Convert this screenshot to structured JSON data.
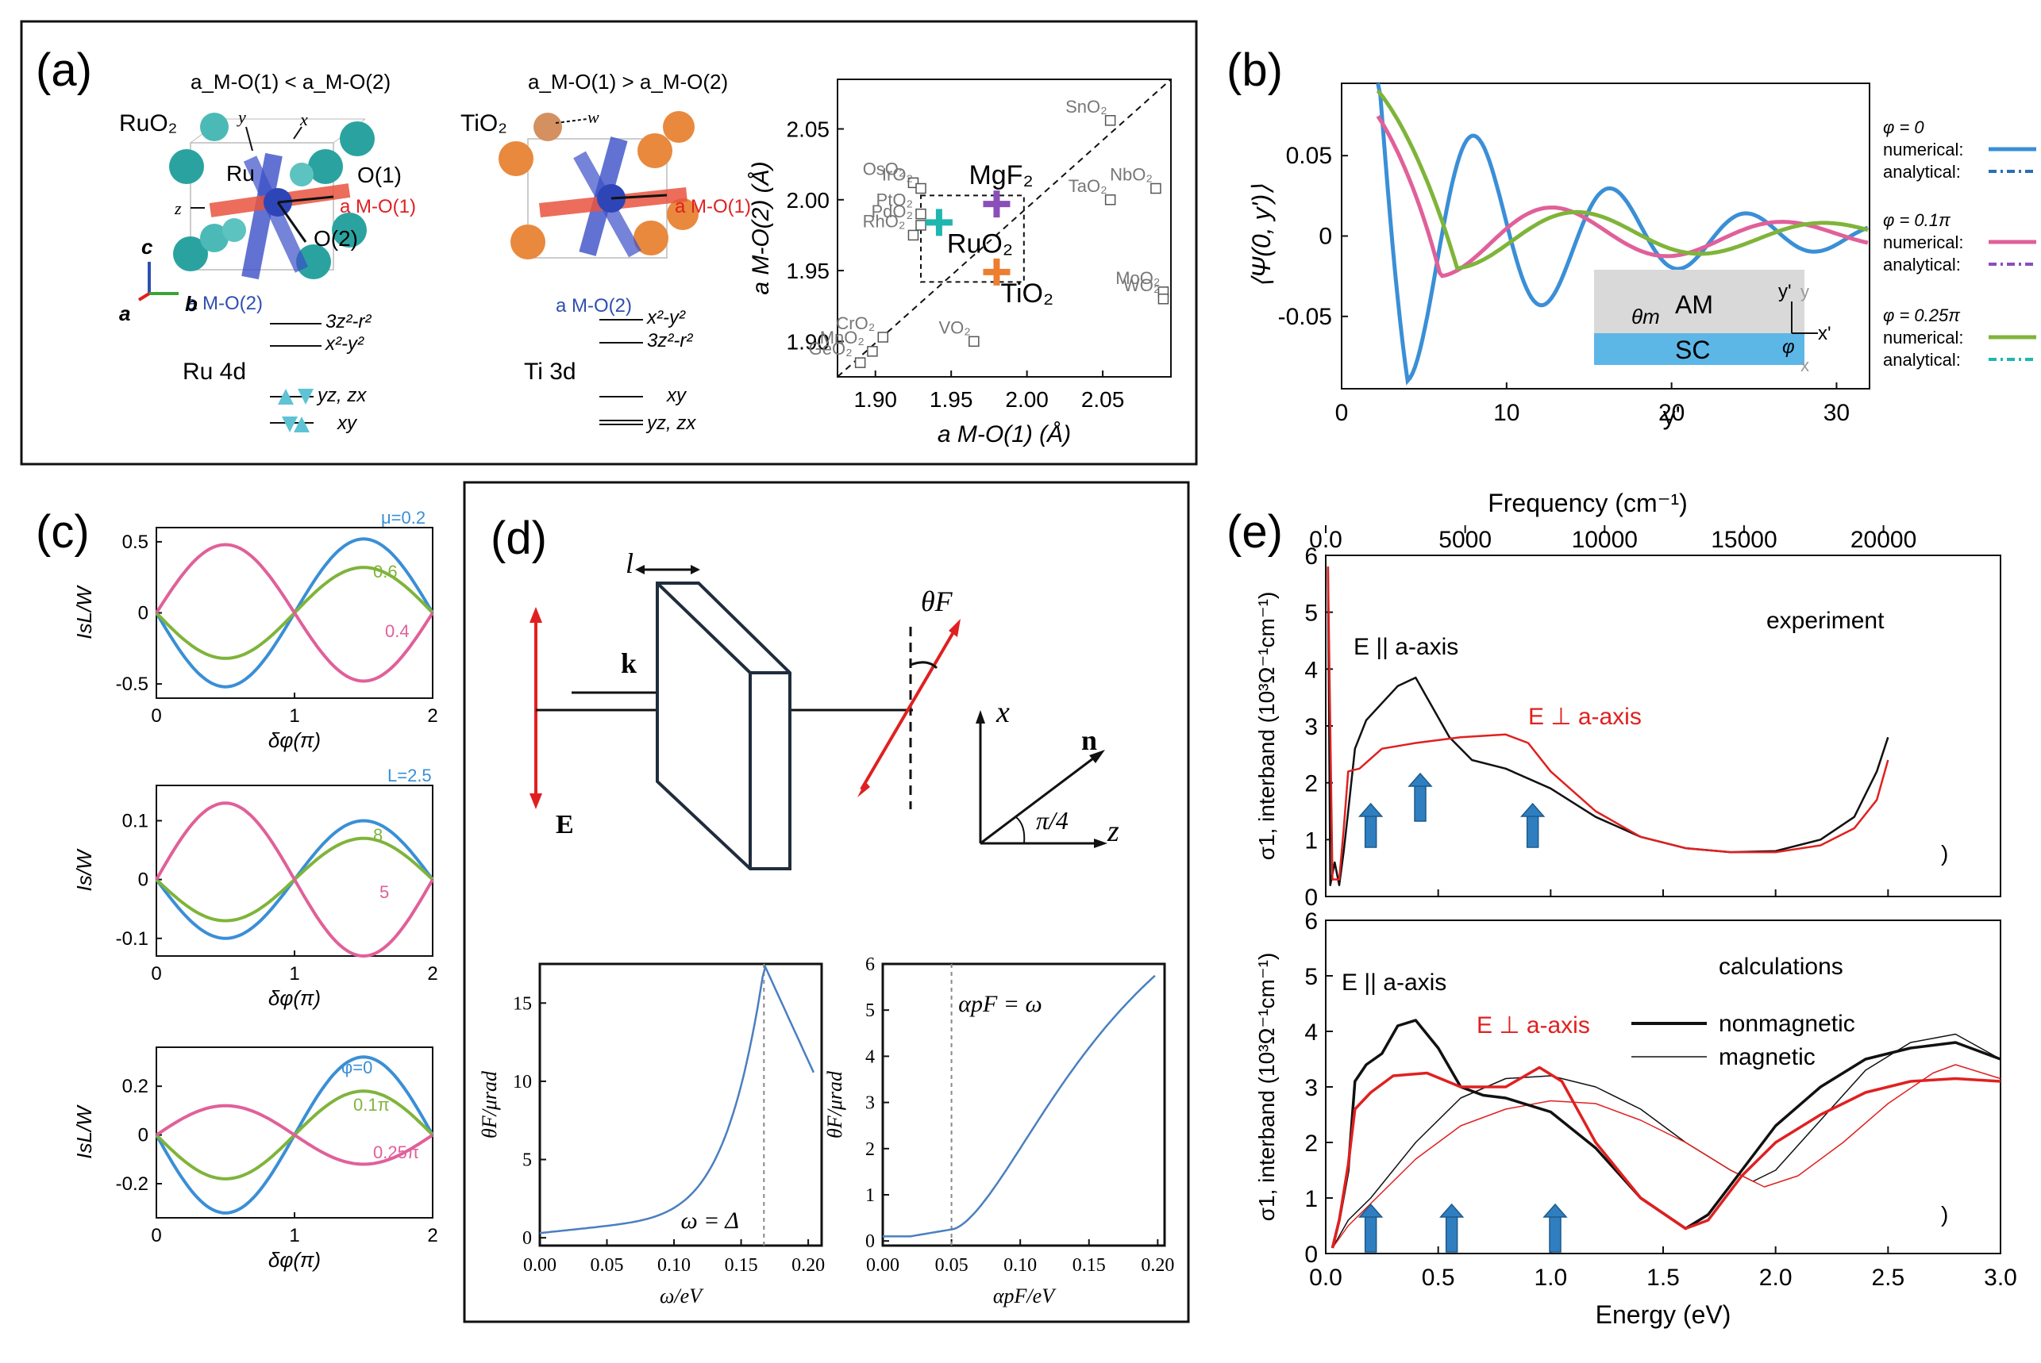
{
  "panel_labels": {
    "a": "(a)",
    "b": "(b)",
    "c": "(c)",
    "d": "(d)",
    "e": "(e)"
  },
  "colors": {
    "blue": "#3a8fd6",
    "pink": "#e0609a",
    "green": "#7fb43a",
    "red": "#e02020",
    "black": "#111111",
    "gray": "#888888",
    "teal": "#1fb6b0",
    "purple": "#8a4fb8",
    "orange": "#ee7d30",
    "arrow_blue": "#2f7fc0"
  },
  "panel_a": {
    "ruo2": {
      "title": "a_M-O(1) < a_M-O(2)",
      "compound": "RuO₂",
      "atom": "Ru",
      "o1": "O(1)",
      "o2": "O(2)",
      "a1": "a M-O(1)",
      "a2": "a M-O(2)",
      "levels": [
        "3z²-r²",
        "x²-y²",
        "yz, zx",
        "xy"
      ],
      "orbital": "Ru 4d",
      "axes": {
        "y": "y",
        "x": "x",
        "z": "z",
        "c": "c",
        "a": "a",
        "b": "b"
      }
    },
    "tio2": {
      "title": "a_M-O(1) > a_M-O(2)",
      "compound": "TiO₂",
      "w": "w",
      "a1": "a M-O(1)",
      "a2": "a M-O(2)",
      "levels": [
        "x²-y²",
        "3z²-r²",
        "xy",
        "yz, zx"
      ],
      "orbital": "Ti 3d"
    },
    "scatter": {
      "xlabel": "a M-O(1) (Å)",
      "ylabel": "a M-O(2) (Å)",
      "xticks": [
        "1.90",
        "1.95",
        "2.00",
        "2.05"
      ],
      "yticks": [
        "1.90",
        "1.95",
        "2.00",
        "2.05"
      ],
      "points": [
        {
          "label": "SnO₂",
          "x": 2.055,
          "y": 2.056
        },
        {
          "label": "OsO₂",
          "x": 1.925,
          "y": 2.012
        },
        {
          "label": "IrO₂",
          "x": 1.93,
          "y": 2.008
        },
        {
          "label": "PtO₂",
          "x": 1.93,
          "y": 1.99
        },
        {
          "label": "PdO₂",
          "x": 1.93,
          "y": 1.982
        },
        {
          "label": "RhO₂",
          "x": 1.925,
          "y": 1.975
        },
        {
          "label": "NbO₂",
          "x": 2.085,
          "y": 2.008
        },
        {
          "label": "TaO₂",
          "x": 2.055,
          "y": 2.0
        },
        {
          "label": "MoO₂",
          "x": 2.09,
          "y": 1.935
        },
        {
          "label": "WO₂",
          "x": 2.09,
          "y": 1.93
        },
        {
          "label": "CrO₂",
          "x": 1.905,
          "y": 1.903
        },
        {
          "label": "MnO₂",
          "x": 1.898,
          "y": 1.893
        },
        {
          "label": "GeO₂",
          "x": 1.89,
          "y": 1.885
        },
        {
          "label": "VO₂",
          "x": 1.965,
          "y": 1.9
        }
      ],
      "highlight": [
        {
          "label": "MgF₂",
          "x": 1.98,
          "y": 1.997
        },
        {
          "label": "RuO₂",
          "x": 1.942,
          "y": 1.984
        },
        {
          "label": "TiO₂",
          "x": 1.98,
          "y": 1.949
        }
      ]
    }
  },
  "panel_b": {
    "ylabel": "⟨Ψ(0, y')⟩",
    "xlabel": "y'",
    "xticks": [
      "0",
      "10",
      "20",
      "30"
    ],
    "yticks": [
      "0.05",
      "0",
      "-0.05"
    ],
    "legend": [
      {
        "phi": "φ = 0",
        "numerical": "numerical:",
        "analytical": "analytical:"
      },
      {
        "phi": "φ = 0.1π",
        "numerical": "numerical:",
        "analytical": "analytical:"
      },
      {
        "phi": "φ = 0.25π",
        "numerical": "numerical:",
        "analytical": "analytical:"
      }
    ],
    "inset": {
      "am": "AM",
      "sc": "SC",
      "theta": "θm",
      "yprime": "y'",
      "xprime": "x'",
      "y": "y",
      "x": "x",
      "phi": "φ"
    }
  },
  "panel_c": {
    "xlabel": "δφ(π)",
    "xticks": [
      "0",
      "1",
      "2"
    ],
    "subplots": [
      {
        "ylabel": "IsL/W",
        "yticks": [
          "0.5",
          "0",
          "-0.5"
        ],
        "labels": [
          "μ=0.2",
          "0.6",
          "0.4"
        ],
        "amps": [
          0.52,
          0.32,
          -0.48
        ]
      },
      {
        "ylabel": "Is/W",
        "yticks": [
          "0.1",
          "0",
          "-0.1"
        ],
        "labels": [
          "L=2.5",
          "8",
          "5"
        ],
        "amps": [
          0.1,
          0.07,
          -0.13
        ]
      },
      {
        "ylabel": "IsL/W",
        "yticks": [
          "0.2",
          "0",
          "-0.2"
        ],
        "labels": [
          "φ=0",
          "0.1π",
          "0.25π"
        ],
        "amps": [
          0.32,
          0.18,
          -0.12
        ]
      }
    ]
  },
  "panel_d": {
    "labels": {
      "l": "l",
      "k": "k",
      "E": "E",
      "theta": "θF",
      "x": "x",
      "n": "n",
      "angle": "π/4",
      "z": "z"
    },
    "left_plot": {
      "ylabel": "θF/μrad",
      "xlabel": "ω/eV",
      "annotation": "ω = Δ",
      "xticks": [
        "0.00",
        "0.05",
        "0.10",
        "0.15",
        "0.20"
      ],
      "yticks": [
        "0",
        "5",
        "10",
        "15"
      ]
    },
    "right_plot": {
      "ylabel": "θF/μrad",
      "xlabel": "αpF/eV",
      "annotation": "αpF = ω",
      "xticks": [
        "0.00",
        "0.05",
        "0.10",
        "0.15",
        "0.20"
      ],
      "yticks": [
        "0",
        "1",
        "2",
        "3",
        "4",
        "5",
        "6"
      ]
    }
  },
  "panel_e": {
    "top_axis_label": "Frequency (cm⁻¹)",
    "top_ticks": [
      "0.0",
      "5000",
      "10000",
      "15000",
      "20000"
    ],
    "xlabel": "Energy (eV)",
    "xticks": [
      "0.0",
      "0.5",
      "1.0",
      "1.5",
      "2.0",
      "2.5",
      "3.0"
    ],
    "ylabel": "σ1, interband (10³Ω⁻¹cm⁻¹)",
    "yticks": [
      "0",
      "1",
      "2",
      "3",
      "4",
      "5",
      "6"
    ],
    "top": {
      "title": "experiment",
      "par": "E || a-axis",
      "perp": "E ⊥ a-axis",
      "paren": ")"
    },
    "bottom": {
      "title": "calculations",
      "par": "E || a-axis",
      "perp": "E ⊥ a-axis",
      "nonmag": "nonmagnetic",
      "mag": "magnetic",
      "paren": ")"
    }
  }
}
